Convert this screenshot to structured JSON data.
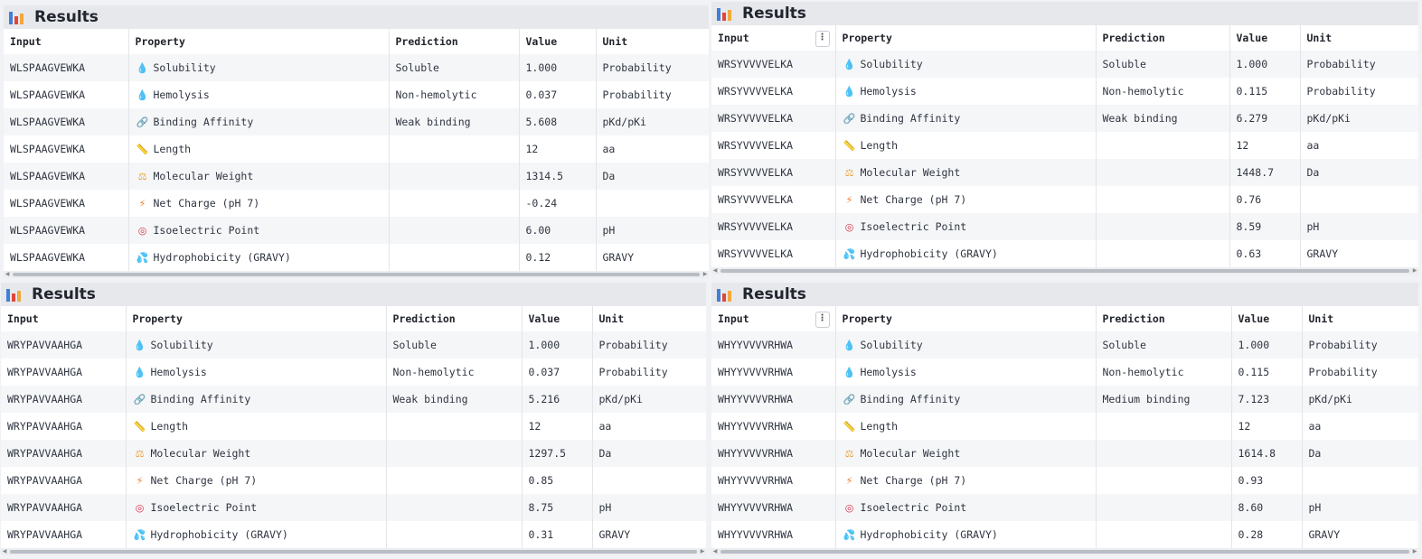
{
  "panels": [
    {
      "title": "Results",
      "headers": {
        "input": "Input",
        "property": "Property",
        "prediction": "Prediction",
        "value": "Value",
        "unit": "Unit"
      },
      "rows": [
        {
          "input": "WLSPAAGVEWKA",
          "property": "Solubility",
          "icon": "droplet-icon",
          "prediction": "Soluble",
          "value": "1.000",
          "unit": "Probability"
        },
        {
          "input": "WLSPAAGVEWKA",
          "property": "Hemolysis",
          "icon": "blood-drop-icon",
          "prediction": "Non-hemolytic",
          "value": "0.037",
          "unit": "Probability"
        },
        {
          "input": "WLSPAAGVEWKA",
          "property": "Binding Affinity",
          "icon": "link-icon",
          "prediction": "Weak binding",
          "value": "5.608",
          "unit": "pKd/pKi"
        },
        {
          "input": "WLSPAAGVEWKA",
          "property": "Length",
          "icon": "ruler-icon",
          "prediction": "",
          "value": "12",
          "unit": "aa"
        },
        {
          "input": "WLSPAAGVEWKA",
          "property": "Molecular Weight",
          "icon": "scale-icon",
          "prediction": "",
          "value": "1314.5",
          "unit": "Da"
        },
        {
          "input": "WLSPAAGVEWKA",
          "property": "Net Charge (pH 7)",
          "icon": "lightning-icon",
          "prediction": "",
          "value": "-0.24",
          "unit": ""
        },
        {
          "input": "WLSPAAGVEWKA",
          "property": "Isoelectric Point",
          "icon": "target-icon",
          "prediction": "",
          "value": "6.00",
          "unit": "pH"
        },
        {
          "input": "WLSPAAGVEWKA",
          "property": "Hydrophobicity (GRAVY)",
          "icon": "splash-icon",
          "prediction": "",
          "value": "0.12",
          "unit": "GRAVY"
        }
      ]
    },
    {
      "title": "Results",
      "headers": {
        "input": "Input",
        "property": "Property",
        "prediction": "Prediction",
        "value": "Value",
        "unit": "Unit"
      },
      "rows": [
        {
          "input": "WRSYVVVVELKA",
          "property": "Solubility",
          "icon": "droplet-icon",
          "prediction": "Soluble",
          "value": "1.000",
          "unit": "Probability"
        },
        {
          "input": "WRSYVVVVELKA",
          "property": "Hemolysis",
          "icon": "blood-drop-icon",
          "prediction": "Non-hemolytic",
          "value": "0.115",
          "unit": "Probability"
        },
        {
          "input": "WRSYVVVVELKA",
          "property": "Binding Affinity",
          "icon": "link-icon",
          "prediction": "Weak binding",
          "value": "6.279",
          "unit": "pKd/pKi"
        },
        {
          "input": "WRSYVVVVELKA",
          "property": "Length",
          "icon": "ruler-icon",
          "prediction": "",
          "value": "12",
          "unit": "aa"
        },
        {
          "input": "WRSYVVVVELKA",
          "property": "Molecular Weight",
          "icon": "scale-icon",
          "prediction": "",
          "value": "1448.7",
          "unit": "Da"
        },
        {
          "input": "WRSYVVVVELKA",
          "property": "Net Charge (pH 7)",
          "icon": "lightning-icon",
          "prediction": "",
          "value": "0.76",
          "unit": ""
        },
        {
          "input": "WRSYVVVVELKA",
          "property": "Isoelectric Point",
          "icon": "target-icon",
          "prediction": "",
          "value": "8.59",
          "unit": "pH"
        },
        {
          "input": "WRSYVVVVELKA",
          "property": "Hydrophobicity (GRAVY)",
          "icon": "splash-icon",
          "prediction": "",
          "value": "0.63",
          "unit": "GRAVY"
        }
      ]
    },
    {
      "title": "Results",
      "headers": {
        "input": "Input",
        "property": "Property",
        "prediction": "Prediction",
        "value": "Value",
        "unit": "Unit"
      },
      "rows": [
        {
          "input": "WRYPAVVAAHGA",
          "property": "Solubility",
          "icon": "droplet-icon",
          "prediction": "Soluble",
          "value": "1.000",
          "unit": "Probability"
        },
        {
          "input": "WRYPAVVAAHGA",
          "property": "Hemolysis",
          "icon": "blood-drop-icon",
          "prediction": "Non-hemolytic",
          "value": "0.037",
          "unit": "Probability"
        },
        {
          "input": "WRYPAVVAAHGA",
          "property": "Binding Affinity",
          "icon": "link-icon",
          "prediction": "Weak binding",
          "value": "5.216",
          "unit": "pKd/pKi"
        },
        {
          "input": "WRYPAVVAAHGA",
          "property": "Length",
          "icon": "ruler-icon",
          "prediction": "",
          "value": "12",
          "unit": "aa"
        },
        {
          "input": "WRYPAVVAAHGA",
          "property": "Molecular Weight",
          "icon": "scale-icon",
          "prediction": "",
          "value": "1297.5",
          "unit": "Da"
        },
        {
          "input": "WRYPAVVAAHGA",
          "property": "Net Charge (pH 7)",
          "icon": "lightning-icon",
          "prediction": "",
          "value": "0.85",
          "unit": ""
        },
        {
          "input": "WRYPAVVAAHGA",
          "property": "Isoelectric Point",
          "icon": "target-icon",
          "prediction": "",
          "value": "8.75",
          "unit": "pH"
        },
        {
          "input": "WRYPAVVAAHGA",
          "property": "Hydrophobicity (GRAVY)",
          "icon": "splash-icon",
          "prediction": "",
          "value": "0.31",
          "unit": "GRAVY"
        }
      ]
    },
    {
      "title": "Results",
      "headers": {
        "input": "Input",
        "property": "Property",
        "prediction": "Prediction",
        "value": "Value",
        "unit": "Unit"
      },
      "rows": [
        {
          "input": "WHYYVVVVRHWA",
          "property": "Solubility",
          "icon": "droplet-icon",
          "prediction": "Soluble",
          "value": "1.000",
          "unit": "Probability"
        },
        {
          "input": "WHYYVVVVRHWA",
          "property": "Hemolysis",
          "icon": "blood-drop-icon",
          "prediction": "Non-hemolytic",
          "value": "0.115",
          "unit": "Probability"
        },
        {
          "input": "WHYYVVVVRHWA",
          "property": "Binding Affinity",
          "icon": "link-icon",
          "prediction": "Medium binding",
          "value": "7.123",
          "unit": "pKd/pKi"
        },
        {
          "input": "WHYYVVVVRHWA",
          "property": "Length",
          "icon": "ruler-icon",
          "prediction": "",
          "value": "12",
          "unit": "aa"
        },
        {
          "input": "WHYYVVVVRHWA",
          "property": "Molecular Weight",
          "icon": "scale-icon",
          "prediction": "",
          "value": "1614.8",
          "unit": "Da"
        },
        {
          "input": "WHYYVVVVRHWA",
          "property": "Net Charge (pH 7)",
          "icon": "lightning-icon",
          "prediction": "",
          "value": "0.93",
          "unit": ""
        },
        {
          "input": "WHYYVVVVRHWA",
          "property": "Isoelectric Point",
          "icon": "target-icon",
          "prediction": "",
          "value": "8.60",
          "unit": "pH"
        },
        {
          "input": "WHYYVVVVRHWA",
          "property": "Hydrophobicity (GRAVY)",
          "icon": "splash-icon",
          "prediction": "",
          "value": "0.28",
          "unit": "GRAVY"
        }
      ]
    }
  ],
  "icons": {
    "droplet-icon": {
      "glyph": "💧",
      "color": "#3d9ae8"
    },
    "blood-drop-icon": {
      "glyph": "💧",
      "color": "#e0304a"
    },
    "link-icon": {
      "glyph": "🔗",
      "color": "#9aa0a8"
    },
    "ruler-icon": {
      "glyph": "📏",
      "color": "#9a8fb8"
    },
    "scale-icon": {
      "glyph": "⚖",
      "color": "#e8a23a"
    },
    "lightning-icon": {
      "glyph": "⚡",
      "color": "#f07a2a"
    },
    "target-icon": {
      "glyph": "◎",
      "color": "#d9344a"
    },
    "splash-icon": {
      "glyph": "💦",
      "color": "#3aa6e0"
    }
  }
}
